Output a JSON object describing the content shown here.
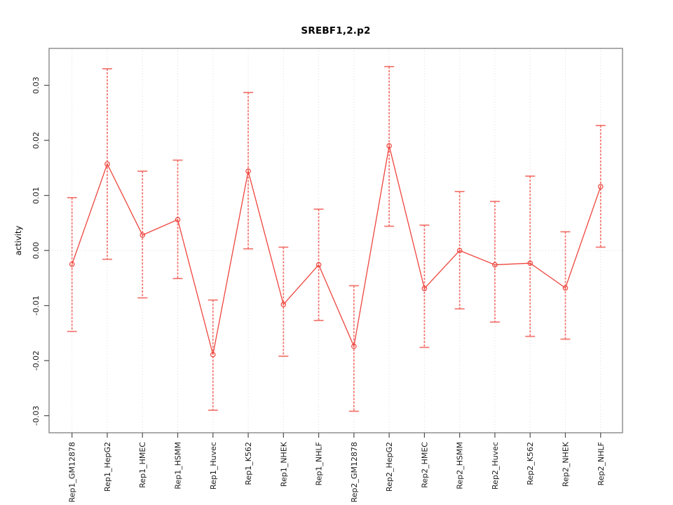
{
  "chart_data": {
    "type": "line",
    "title": "SREBF1,2.p2",
    "xlabel": "",
    "ylabel": "activity",
    "ylim": [
      -0.0331,
      0.0367
    ],
    "yticks": [
      -0.03,
      -0.02,
      -0.01,
      0.0,
      0.01,
      0.02,
      0.03
    ],
    "ytick_labels": [
      "-0.03",
      "-0.02",
      "-0.01",
      "0.00",
      "0.01",
      "0.02",
      "0.03"
    ],
    "grid": "vertical dotted line per category, horizontal dotted line at 0 only",
    "legend": "none",
    "error_bars": true,
    "categories": [
      "Rep1_GM12878",
      "Rep1_HepG2",
      "Rep1_HMEC",
      "Rep1_HSMM",
      "Rep1_Huvec",
      "Rep1_K562",
      "Rep1_NHEK",
      "Rep1_NHLF",
      "Rep2_GM12878",
      "Rep2_HepG2",
      "Rep2_HMEC",
      "Rep2_HSMM",
      "Rep2_Huvec",
      "Rep2_K562",
      "Rep2_NHEK",
      "Rep2_NHLF"
    ],
    "series": [
      {
        "name": "activity",
        "values": [
          -0.0025,
          0.0157,
          0.0028,
          0.0056,
          -0.0189,
          0.0144,
          -0.0098,
          -0.0026,
          -0.0174,
          0.019,
          -0.0069,
          0.0,
          -0.0026,
          -0.0023,
          -0.0068,
          0.0116
        ],
        "upper": [
          0.0096,
          0.033,
          0.0144,
          0.0164,
          -0.009,
          0.0287,
          0.0006,
          0.0075,
          -0.0064,
          0.0334,
          0.0046,
          0.0107,
          0.0089,
          0.0135,
          0.0034,
          0.0227
        ],
        "lower": [
          -0.0147,
          -0.0016,
          -0.0086,
          -0.0051,
          -0.029,
          0.0003,
          -0.0192,
          -0.0127,
          -0.0292,
          0.0044,
          -0.0176,
          -0.0106,
          -0.013,
          -0.0156,
          -0.0161,
          0.0006
        ]
      }
    ],
    "colors": {
      "line": "#EE453D",
      "marker": "#EE453D",
      "error_bar": "#F2655E",
      "grid": "#DCDCDC",
      "box": "#7F7F7F",
      "tick": "#4D4D4D",
      "tick_label": "#1A1A1A"
    }
  }
}
